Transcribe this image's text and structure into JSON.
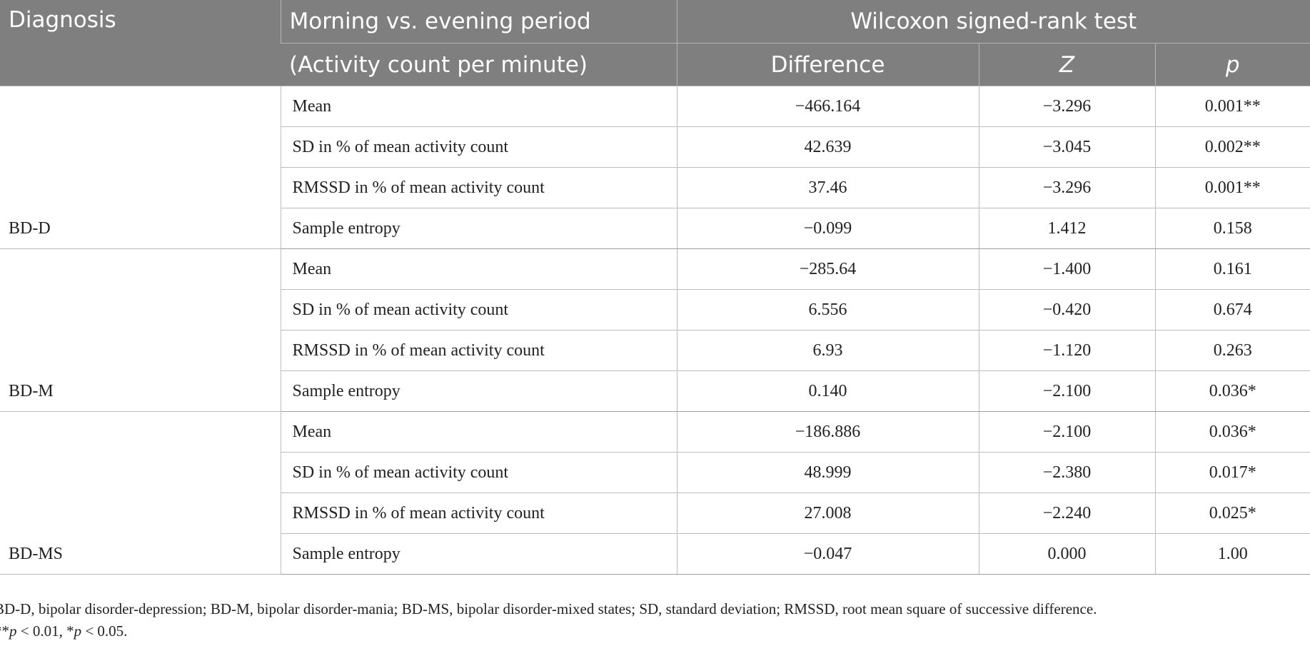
{
  "header": {
    "diagnosis": "Diagnosis",
    "morning_evening": "Morning vs. evening period",
    "activity_count": "(Activity count per minute)",
    "wilcoxon": "Wilcoxon signed-rank test",
    "difference": "Difference",
    "z": "Z",
    "p": "p"
  },
  "groups": [
    {
      "diagnosis": "BD-D",
      "rows": [
        {
          "measure": "Mean",
          "difference": "−466.164",
          "z": "−3.296",
          "p": "0.001**"
        },
        {
          "measure": "SD in % of mean activity count",
          "difference": "42.639",
          "z": "−3.045",
          "p": "0.002**"
        },
        {
          "measure": "RMSSD in % of mean activity count",
          "difference": "37.46",
          "z": "−3.296",
          "p": "0.001**"
        },
        {
          "measure": "Sample entropy",
          "difference": "−0.099",
          "z": "1.412",
          "p": "0.158"
        }
      ]
    },
    {
      "diagnosis": "BD-M",
      "rows": [
        {
          "measure": "Mean",
          "difference": "−285.64",
          "z": "−1.400",
          "p": "0.161"
        },
        {
          "measure": "SD in % of mean activity count",
          "difference": "6.556",
          "z": "−0.420",
          "p": "0.674"
        },
        {
          "measure": "RMSSD in % of mean activity count",
          "difference": "6.93",
          "z": "−1.120",
          "p": "0.263"
        },
        {
          "measure": "Sample entropy",
          "difference": "0.140",
          "z": "−2.100",
          "p": "0.036*"
        }
      ]
    },
    {
      "diagnosis": "BD-MS",
      "rows": [
        {
          "measure": "Mean",
          "difference": "−186.886",
          "z": "−2.100",
          "p": "0.036*"
        },
        {
          "measure": "SD in % of mean activity count",
          "difference": "48.999",
          "z": "−2.380",
          "p": "0.017*"
        },
        {
          "measure": "RMSSD in % of mean activity count",
          "difference": "27.008",
          "z": "−2.240",
          "p": "0.025*"
        },
        {
          "measure": "Sample entropy",
          "difference": "−0.047",
          "z": "0.000",
          "p": "1.00"
        }
      ]
    }
  ],
  "footnotes": {
    "abbreviations": "BD-D, bipolar disorder-depression; BD-M, bipolar disorder-mania; BD-MS, bipolar disorder-mixed states; SD, standard deviation; RMSSD, root mean square of successive difference.",
    "sig_prefix": "**",
    "sig_p1": "p",
    "sig_mid": " < 0.01, *",
    "sig_p2": "p",
    "sig_end": " < 0.05."
  },
  "colors": {
    "header_bg": "#7f7f7f",
    "header_text": "#ffffff",
    "rule": "#bdbdbd"
  }
}
